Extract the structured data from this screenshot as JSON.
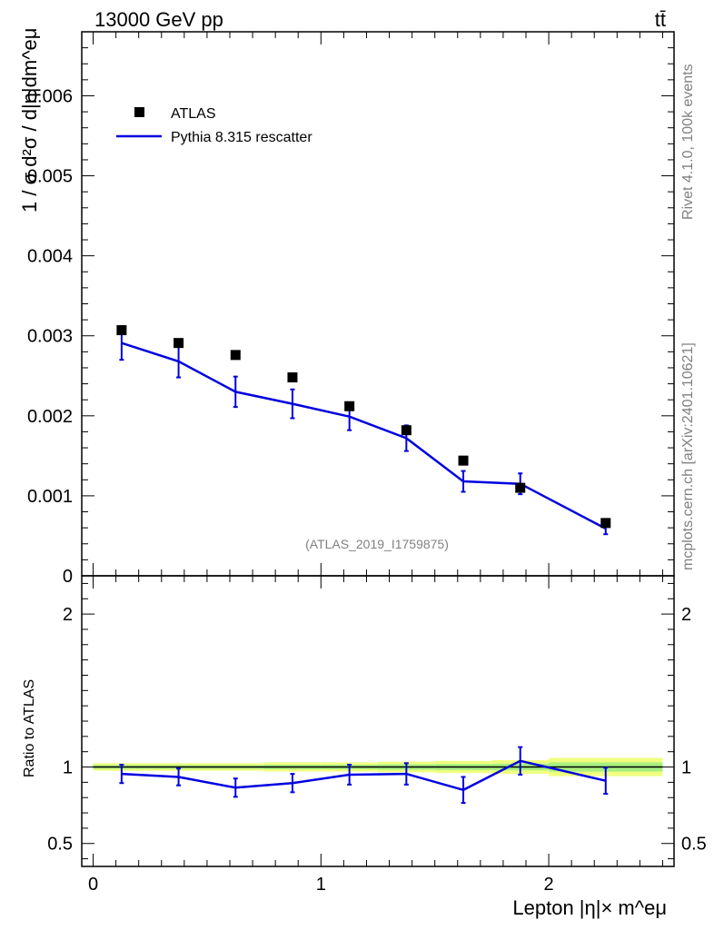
{
  "header": {
    "energy_label": "13000 GeV pp",
    "process_label": "tt̄"
  },
  "side_text": {
    "rivet": "Rivet 4.1.0,  100k events",
    "mcplots": "mcplots.cern.ch [arXiv:2401.10621]"
  },
  "analysis_label": "(ATLAS_2019_I1759875)",
  "colors": {
    "data": "#000000",
    "mc": "#0000e0",
    "band_outer": "#f0ff80",
    "band_inner": "#a8f080"
  },
  "chart_data": [
    {
      "type": "scatter",
      "title": "",
      "ylabel": "1 / σ  d²σ / d|η|dm^eμ",
      "xlabel": "Lepton |η|× m^eμ",
      "xlim": [
        -0.05,
        2.55
      ],
      "ylim": [
        0,
        0.0068
      ],
      "yticks": [
        0,
        0.001,
        0.002,
        0.003,
        0.004,
        0.005,
        0.006
      ],
      "ytick_labels": [
        "0",
        "0.001",
        "0.002",
        "0.003",
        "0.004",
        "0.005",
        "0.006"
      ],
      "legend": {
        "position": "top-left",
        "entries": [
          "ATLAS",
          "Pythia 8.315 rescatter"
        ]
      },
      "series": [
        {
          "name": "ATLAS",
          "marker": "square",
          "x": [
            0.125,
            0.375,
            0.625,
            0.875,
            1.125,
            1.375,
            1.625,
            1.875,
            2.25
          ],
          "values": [
            0.00307,
            0.00291,
            0.00276,
            0.00248,
            0.00212,
            0.00182,
            0.00144,
            0.0011,
            0.00066
          ]
        },
        {
          "name": "Pythia 8.315 rescatter",
          "marker": "line",
          "x": [
            0.125,
            0.375,
            0.625,
            0.875,
            1.125,
            1.375,
            1.625,
            1.875,
            2.25
          ],
          "values": [
            0.00291,
            0.00268,
            0.0023,
            0.00215,
            0.00199,
            0.00172,
            0.00118,
            0.00115,
            0.00059
          ],
          "err": [
            0.00021,
            0.0002,
            0.00019,
            0.00018,
            0.00017,
            0.00016,
            0.00013,
            0.00013,
            7e-05
          ]
        }
      ]
    },
    {
      "type": "line",
      "ylabel": "Ratio to ATLAS",
      "xlabel": "Lepton |η|× m^eμ",
      "xlim": [
        -0.05,
        2.55
      ],
      "ylim": [
        0.35,
        2.25
      ],
      "yticks": [
        0.5,
        1,
        2
      ],
      "ytick_labels": [
        "0.5",
        "1",
        "2"
      ],
      "xticks": [
        0,
        1,
        2
      ],
      "xtick_labels": [
        "0",
        "1",
        "2"
      ],
      "reference_line": 1,
      "band": {
        "x_edges": [
          0,
          0.25,
          0.5,
          0.75,
          1.0,
          1.25,
          1.5,
          1.75,
          2.0,
          2.5
        ],
        "outer_halfwidth": [
          0.025,
          0.025,
          0.025,
          0.03,
          0.03,
          0.035,
          0.04,
          0.045,
          0.06
        ],
        "inner_halfwidth": [
          0.012,
          0.012,
          0.012,
          0.015,
          0.015,
          0.018,
          0.02,
          0.022,
          0.03
        ]
      },
      "series": [
        {
          "name": "Pythia 8.315 rescatter",
          "x": [
            0.125,
            0.375,
            0.625,
            0.875,
            1.125,
            1.375,
            1.625,
            1.875,
            2.25
          ],
          "values": [
            0.955,
            0.935,
            0.865,
            0.895,
            0.95,
            0.955,
            0.85,
            1.04,
            0.91
          ],
          "err": [
            0.06,
            0.055,
            0.06,
            0.06,
            0.065,
            0.07,
            0.085,
            0.09,
            0.085
          ]
        }
      ]
    }
  ]
}
